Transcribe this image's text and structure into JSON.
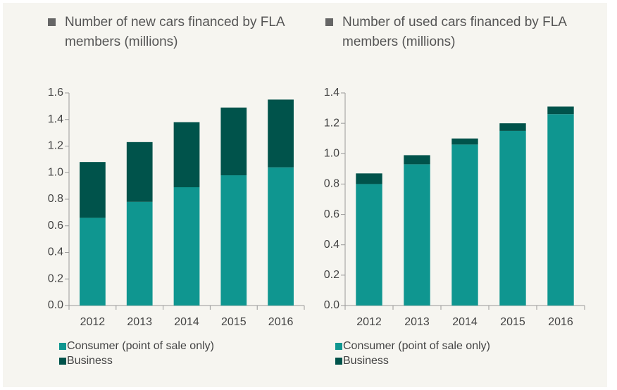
{
  "chart_data": [
    {
      "type": "bar",
      "stacked": true,
      "title": "Number of new cars financed by FLA members (millions)",
      "categories": [
        "2012",
        "2013",
        "2014",
        "2015",
        "2016"
      ],
      "series": [
        {
          "name": "Consumer (point of sale only)",
          "color": "#0f9690",
          "values": [
            0.66,
            0.78,
            0.89,
            0.98,
            1.04
          ]
        },
        {
          "name": "Business",
          "color": "#00534b",
          "values": [
            0.42,
            0.45,
            0.49,
            0.51,
            0.51
          ]
        }
      ],
      "ylim": [
        0,
        1.6
      ],
      "yticks": [
        {
          "value": 0,
          "label": "0.0"
        },
        0.2,
        0.4,
        0.6,
        0.8,
        {
          "value": 1,
          "label": "1.0"
        },
        1.2,
        1.4,
        1.6
      ]
    },
    {
      "type": "bar",
      "stacked": true,
      "title": "Number of used cars financed by FLA members (millions)",
      "categories": [
        "2012",
        "2013",
        "2014",
        "2015",
        "2016"
      ],
      "series": [
        {
          "name": "Consumer (point of sale only)",
          "color": "#0f9690",
          "values": [
            0.8,
            0.93,
            1.06,
            1.15,
            1.26
          ]
        },
        {
          "name": "Business",
          "color": "#00534b",
          "values": [
            0.07,
            0.06,
            0.04,
            0.05,
            0.05
          ]
        }
      ],
      "ylim": [
        0,
        1.4
      ],
      "yticks": [
        {
          "value": 0,
          "label": "0.0"
        },
        0.2,
        0.4,
        0.6,
        0.8,
        {
          "value": 1,
          "label": "1.0"
        },
        1.2,
        1.4
      ]
    }
  ]
}
